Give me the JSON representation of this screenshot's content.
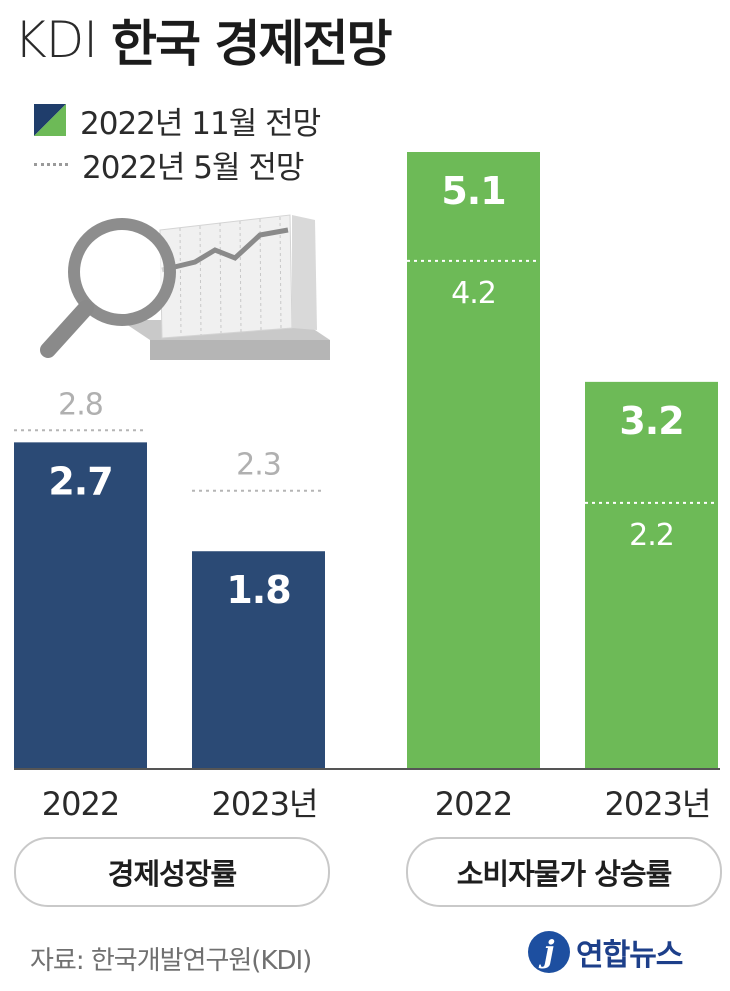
{
  "header": {
    "org": "KDI",
    "title": "한국 경제전망"
  },
  "legend": {
    "nov_label": "2022년 11월 전망",
    "may_label": "2022년 5월 전망"
  },
  "colors": {
    "growth": "#2b4a75",
    "inflation": "#6dba57",
    "legend_swatch_green": "#6dba57",
    "legend_swatch_navy": "#1f3d6b"
  },
  "chart_data": {
    "type": "bar",
    "groups": [
      {
        "name": "경제성장률",
        "categories": [
          "2022",
          "2023년"
        ],
        "series": [
          {
            "name": "2022년 11월 전망",
            "values": [
              2.7,
              1.8
            ]
          },
          {
            "name": "2022년 5월 전망",
            "values": [
              2.8,
              2.3
            ]
          }
        ]
      },
      {
        "name": "소비자물가 상승률",
        "categories": [
          "2022",
          "2023년"
        ],
        "series": [
          {
            "name": "2022년 11월 전망",
            "values": [
              5.1,
              3.2
            ]
          },
          {
            "name": "2022년 5월 전망",
            "values": [
              4.2,
              2.2
            ]
          }
        ]
      }
    ],
    "value_labels": {
      "growth_nov": [
        "2.7",
        "1.8"
      ],
      "growth_may": [
        "2.8",
        "2.3"
      ],
      "inflation_nov": [
        "5.1",
        "3.2"
      ],
      "inflation_may": [
        "4.2",
        "2.2"
      ]
    },
    "ylim": [
      0,
      5.1
    ]
  },
  "pills": {
    "growth": "경제성장률",
    "inflation": "소비자물가 상승률"
  },
  "footer": {
    "source": "자료: 한국개발연구원(KDI)",
    "logo_mark": "j",
    "logo_text": "연합뉴스"
  }
}
